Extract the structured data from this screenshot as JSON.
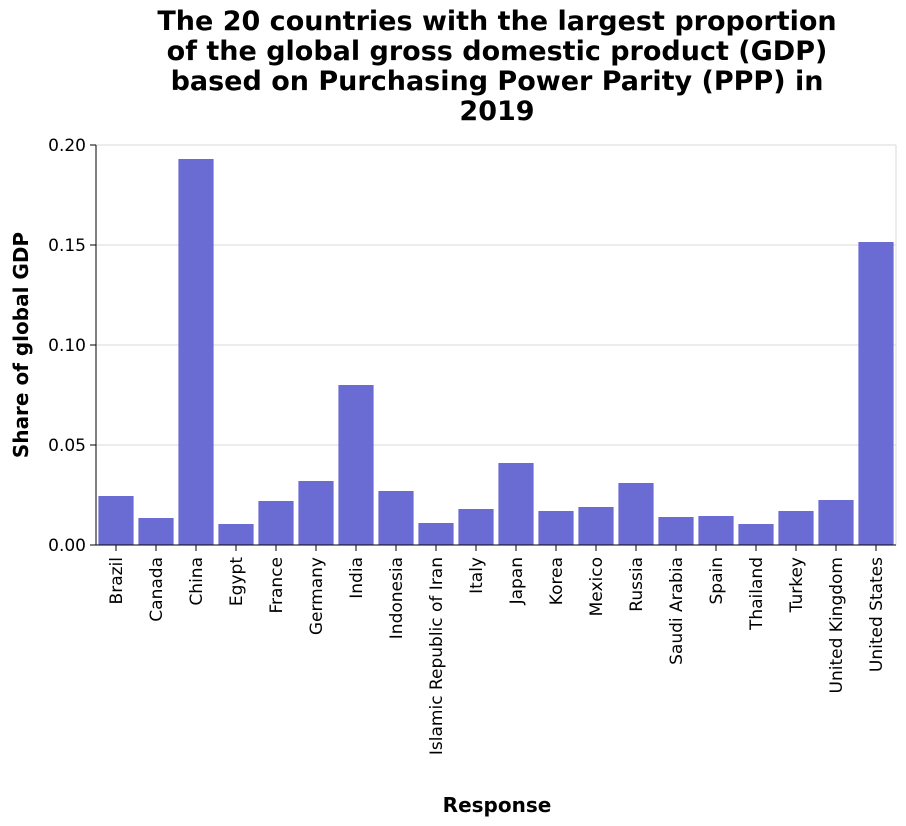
{
  "chart_data": {
    "type": "bar",
    "title": "The 20 countries with the largest proportion of the global gross domestic product (GDP) based on Purchasing Power Parity (PPP) in 2019",
    "title_lines": [
      "The 20 countries with the largest proportion",
      "of the global gross domestic product (GDP)",
      "based on Purchasing Power Parity (PPP) in",
      "2019"
    ],
    "xlabel": "Response",
    "ylabel": "Share of global GDP",
    "ylim": [
      0,
      0.2
    ],
    "yticks": [
      "0.00",
      "0.05",
      "0.10",
      "0.15",
      "0.20"
    ],
    "ytick_values": [
      0,
      0.05,
      0.1,
      0.15,
      0.2
    ],
    "grid": true,
    "bar_color": "#6b6bd4",
    "categories": [
      "Brazil",
      "Canada",
      "China",
      "Egypt",
      "France",
      "Germany",
      "India",
      "Indonesia",
      "Islamic Republic of Iran",
      "Italy",
      "Japan",
      "Korea",
      "Mexico",
      "Russia",
      "Saudi Arabia",
      "Spain",
      "Thailand",
      "Turkey",
      "United Kingdom",
      "United States"
    ],
    "values": [
      0.0245,
      0.0135,
      0.193,
      0.0105,
      0.022,
      0.032,
      0.08,
      0.027,
      0.011,
      0.018,
      0.041,
      0.017,
      0.019,
      0.031,
      0.014,
      0.0145,
      0.0105,
      0.017,
      0.0225,
      0.1515
    ]
  }
}
